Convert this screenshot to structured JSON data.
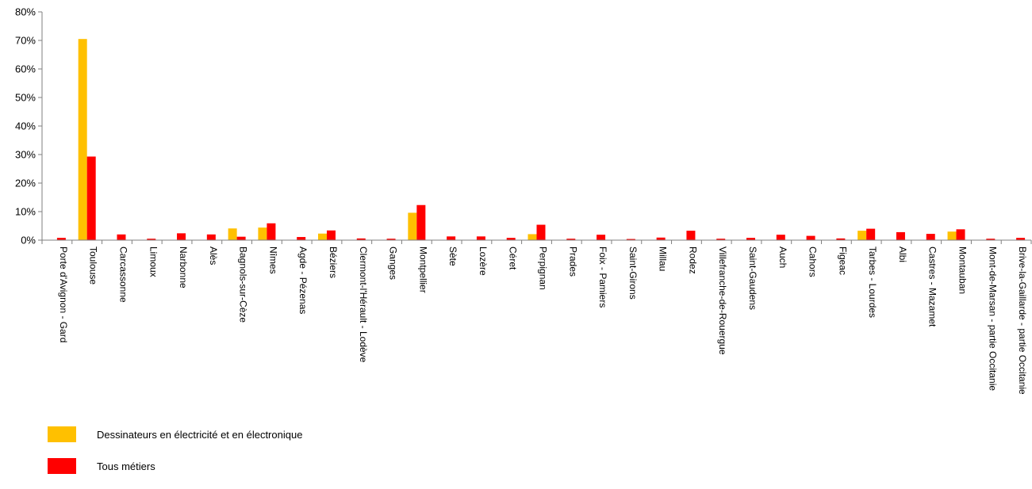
{
  "chart_data": {
    "type": "bar",
    "categories": [
      "Porte d'Avignon - Gard",
      "Toulouse",
      "Carcassonne",
      "Limoux",
      "Narbonne",
      "Alès",
      "Bagnols-sur-Cèze",
      "Nîmes",
      "Agde - Pézenas",
      "Béziers",
      "Clermont-l'Hérault - Lodève",
      "Ganges",
      "Montpellier",
      "Sète",
      "Lozère",
      "Céret",
      "Perpignan",
      "Prades",
      "Foix - Pamiers",
      "Saint-Girons",
      "Millau",
      "Rodez",
      "Villefranche-de-Rouergue",
      "Saint-Gaudens",
      "Auch",
      "Cahors",
      "Figeac",
      "Tarbes - Lourdes",
      "Albi",
      "Castres - Mazamet",
      "Montauban",
      "Mont-de-Marsan - partie Occitanie",
      "Brive-la-Gaillarde - partie Occitanie"
    ],
    "series": [
      {
        "name": "Dessinateurs en électricité et en électronique",
        "color": "#FFC000",
        "values": [
          0,
          70.5,
          0,
          0,
          0,
          0,
          4.1,
          4.4,
          0,
          2.3,
          0,
          0,
          9.6,
          0,
          0,
          0,
          2.1,
          0,
          0,
          0,
          0,
          0,
          0,
          0,
          0,
          0,
          0,
          3.3,
          0,
          0,
          3.0,
          0,
          0
        ]
      },
      {
        "name": "Tous métiers",
        "color": "#FF0000",
        "values": [
          0.8,
          29.3,
          2.0,
          0.5,
          2.4,
          2.0,
          1.2,
          5.9,
          1.1,
          3.4,
          0.6,
          0.5,
          12.3,
          1.3,
          1.3,
          0.8,
          5.4,
          0.5,
          1.9,
          0.4,
          0.9,
          3.3,
          0.5,
          0.8,
          1.9,
          1.5,
          0.6,
          4.0,
          2.8,
          2.2,
          3.8,
          0.5,
          0.8
        ]
      }
    ],
    "yticks": [
      "0%",
      "10%",
      "20%",
      "30%",
      "40%",
      "50%",
      "60%",
      "70%",
      "80%"
    ],
    "ylim": [
      0,
      80
    ],
    "unit": "%",
    "legend_position": "bottom-left",
    "grid": false
  }
}
